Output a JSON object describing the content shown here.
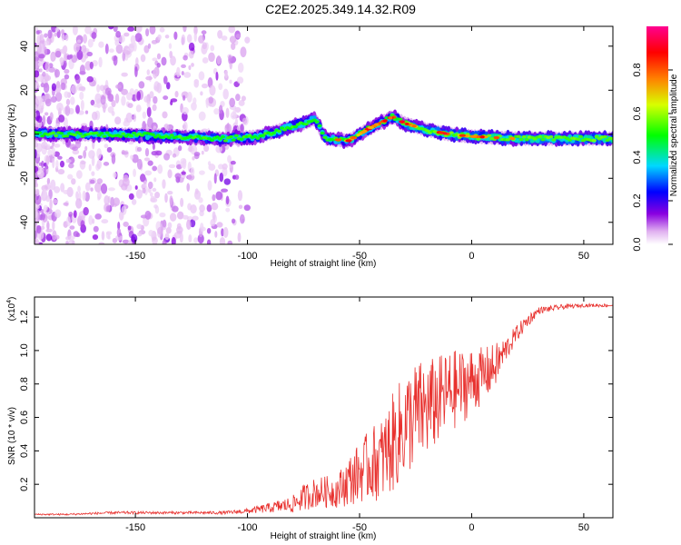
{
  "title": "C2E2.2025.349.14.32.R09",
  "colors": {
    "snr_line": "#e8312e",
    "frame": "#000000"
  },
  "chart_data": [
    {
      "type": "heatmap",
      "xlabel": "Height of straight line (km)",
      "ylabel": "Frequency (Hz)",
      "xlim": [
        -195,
        63
      ],
      "ylim": [
        -50,
        49
      ],
      "xticks": [
        -150,
        -100,
        -50,
        0,
        50
      ],
      "yticks": [
        -40,
        -20,
        0,
        20,
        40
      ],
      "colorbar": {
        "label": "Normalized spectral amplitude",
        "range": [
          0.0,
          1.0
        ],
        "ticks": [
          "0.0",
          "0.2",
          "0.4",
          "0.6",
          "0.8"
        ],
        "tick_values": [
          0.0,
          0.2,
          0.4,
          0.6,
          0.8
        ]
      },
      "ridge": {
        "description": "dominant spectral ridge near 0 Hz",
        "points": [
          {
            "x": -195,
            "f": 0
          },
          {
            "x": -160,
            "f": 0
          },
          {
            "x": -130,
            "f": -1
          },
          {
            "x": -110,
            "f": -2
          },
          {
            "x": -95,
            "f": -1
          },
          {
            "x": -85,
            "f": 2
          },
          {
            "x": -75,
            "f": 5
          },
          {
            "x": -70,
            "f": 7
          },
          {
            "x": -65,
            "f": -2
          },
          {
            "x": -55,
            "f": -3
          },
          {
            "x": -45,
            "f": 3
          },
          {
            "x": -35,
            "f": 8
          },
          {
            "x": -30,
            "f": 5
          },
          {
            "x": -20,
            "f": 2
          },
          {
            "x": -10,
            "f": 0
          },
          {
            "x": 0,
            "f": -1
          },
          {
            "x": 20,
            "f": -2
          },
          {
            "x": 40,
            "f": -2
          },
          {
            "x": 63,
            "f": -2
          }
        ]
      }
    },
    {
      "type": "line",
      "xlabel": "Height of straight line (km)",
      "ylabel": "SNR (10 * v/v)",
      "multiplier_label": "(x10",
      "multiplier_exp": "4",
      "multiplier_close": ")",
      "xlim": [
        -195,
        63
      ],
      "ylim": [
        0,
        1.32
      ],
      "xticks": [
        -150,
        -100,
        -50,
        0,
        50
      ],
      "yticks": [
        0.2,
        0.4,
        0.6,
        0.8,
        1.0,
        1.2
      ],
      "series": [
        {
          "name": "SNR",
          "x": [
            -195,
            -180,
            -160,
            -140,
            -120,
            -110,
            -100,
            -90,
            -80,
            -75,
            -70,
            -60,
            -55,
            -50,
            -45,
            -40,
            -35,
            -30,
            -25,
            -20,
            -15,
            -10,
            -5,
            0,
            5,
            10,
            15,
            20,
            25,
            30,
            40,
            50,
            63
          ],
          "y": [
            0.02,
            0.02,
            0.03,
            0.03,
            0.03,
            0.03,
            0.04,
            0.06,
            0.08,
            0.12,
            0.15,
            0.16,
            0.22,
            0.27,
            0.32,
            0.35,
            0.45,
            0.55,
            0.62,
            0.65,
            0.7,
            0.75,
            0.78,
            0.82,
            0.85,
            0.9,
            1.0,
            1.1,
            1.18,
            1.24,
            1.26,
            1.27,
            1.27
          ],
          "noise": [
            0.005,
            0.005,
            0.008,
            0.008,
            0.008,
            0.01,
            0.015,
            0.03,
            0.05,
            0.08,
            0.09,
            0.1,
            0.15,
            0.18,
            0.22,
            0.25,
            0.3,
            0.32,
            0.32,
            0.3,
            0.27,
            0.25,
            0.23,
            0.2,
            0.17,
            0.14,
            0.08,
            0.05,
            0.04,
            0.02,
            0.015,
            0.01,
            0.01
          ]
        }
      ]
    }
  ]
}
